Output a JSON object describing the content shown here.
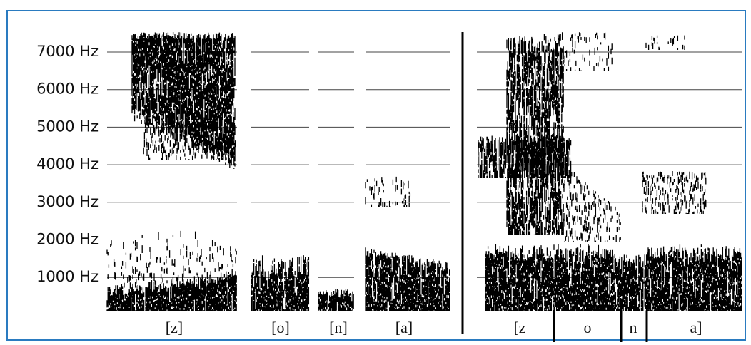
{
  "y_axis_labels": [
    "7000 Hz",
    "6000 Hz",
    "5000 Hz",
    "4000 Hz",
    "3000 Hz",
    "2000 Hz",
    "1000 Hz"
  ],
  "left_panel": {
    "segments": [
      "[z]",
      "[o]",
      "[n]",
      "[a]"
    ]
  },
  "right_panel": {
    "segments": [
      "[z",
      "o",
      "n",
      "a]"
    ]
  }
}
